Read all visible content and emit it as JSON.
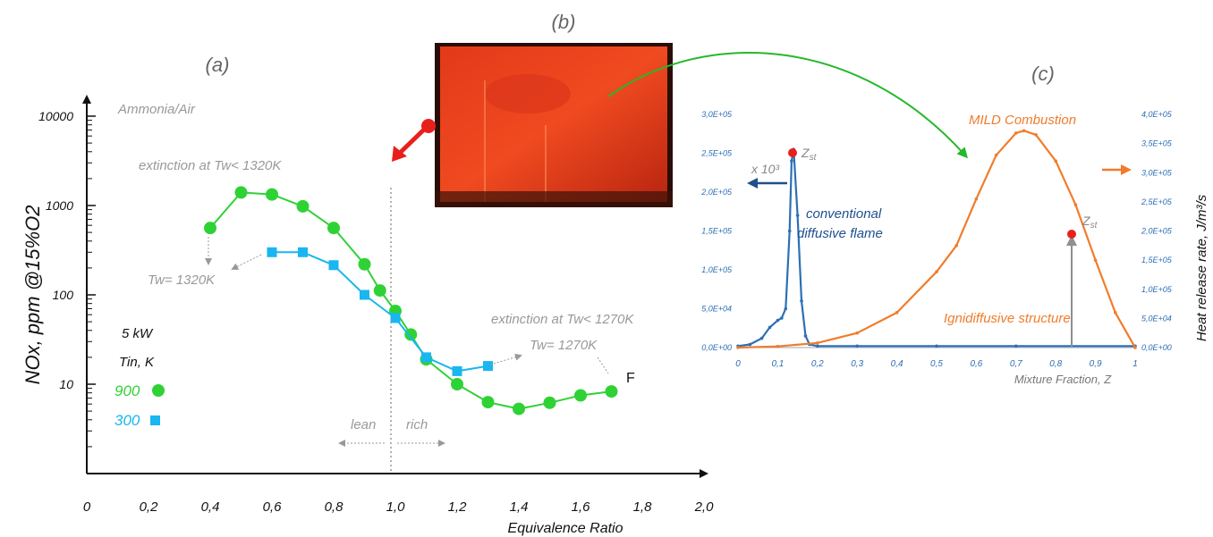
{
  "panels": {
    "a": "(a)",
    "b": "(b)",
    "c": "(c)"
  },
  "chart_data": [
    {
      "type": "line",
      "panel": "(a)",
      "xlabel": "Equivalence Ratio",
      "ylabel": "NOx, ppm @15%O2",
      "y_scale": "log",
      "xlim": [
        0,
        2.0
      ],
      "ylim": [
        1,
        10000
      ],
      "x_ticks": [
        "0",
        "0,2",
        "0,4",
        "0,6",
        "0,8",
        "1,0",
        "1,2",
        "1,4",
        "1,6",
        "1,8",
        "2,0"
      ],
      "y_ticks": [
        "10000",
        "1000",
        "100",
        "10"
      ],
      "legend_title": "5 kW",
      "legend_subtitle": "Tin, K",
      "series": [
        {
          "name": "900",
          "color": "#2fd235",
          "marker": "circle",
          "x": [
            0.4,
            0.5,
            0.6,
            0.7,
            0.8,
            0.9,
            0.95,
            1.0,
            1.05,
            1.1,
            1.2,
            1.3,
            1.4,
            1.5,
            1.6,
            1.7
          ],
          "y": [
            560,
            1400,
            1330,
            980,
            560,
            220,
            112,
            66,
            36,
            19,
            10,
            6.3,
            5.3,
            6.2,
            7.5,
            8.3
          ]
        },
        {
          "name": "300",
          "color": "#19b6f0",
          "marker": "square",
          "x": [
            0.6,
            0.7,
            0.8,
            0.9,
            1.0,
            1.1,
            1.2,
            1.3
          ],
          "y": [
            300,
            300,
            215,
            100,
            55,
            20,
            14,
            16
          ]
        }
      ],
      "annotations": {
        "fuel": "Ammonia/Air",
        "extinction_lean": "extinction at Tw< 1320K",
        "tw_lean": "Tw= 1320K",
        "extinction_rich": "extinction at Tw< 1270K",
        "tw_rich": "Tw= 1270K",
        "lean": "lean",
        "rich": "rich",
        "f_label": "F"
      }
    },
    {
      "type": "line",
      "panel": "(c)",
      "xlabel": "Mixture Fraction, Z",
      "ylabel_right": "Heat release rate, J/m³/s",
      "xlim": [
        0,
        1
      ],
      "ylim_left": [
        0,
        300000
      ],
      "ylim_right": [
        0,
        400000
      ],
      "x_ticks": [
        "0",
        "0,1",
        "0,2",
        "0,3",
        "0,4",
        "0,5",
        "0,6",
        "0,7",
        "0,8",
        "0,9",
        "1"
      ],
      "y_left_ticks": [
        "0,0E+00",
        "5,0E+04",
        "1,0E+05",
        "1,5E+05",
        "2,0E+05",
        "2,5E+05",
        "3,0E+05"
      ],
      "y_right_ticks": [
        "0,0E+00",
        "5,0E+04",
        "1,0E+05",
        "1,5E+05",
        "2,0E+05",
        "2,5E+05",
        "3,0E+05",
        "3,5E+05",
        "4,0E+05"
      ],
      "series": [
        {
          "name": "conventional diffusive flame",
          "color": "#2c6fb5",
          "axis": "left",
          "x": [
            0,
            0.03,
            0.06,
            0.08,
            0.1,
            0.11,
            0.12,
            0.13,
            0.135,
            0.14,
            0.15,
            0.16,
            0.17,
            0.18,
            0.2,
            0.3,
            0.5,
            0.7,
            1.0
          ],
          "y": [
            2000,
            4000,
            12000,
            26000,
            35000,
            38000,
            50000,
            150000,
            240000,
            255000,
            170000,
            60000,
            15000,
            4000,
            2000,
            2000,
            2000,
            2000,
            2000
          ]
        },
        {
          "name": "MILD Combustion",
          "color": "#f07c2c",
          "axis": "right",
          "x": [
            0,
            0.1,
            0.2,
            0.3,
            0.4,
            0.5,
            0.55,
            0.6,
            0.65,
            0.7,
            0.72,
            0.75,
            0.8,
            0.85,
            0.9,
            0.95,
            1.0
          ],
          "y": [
            0,
            2000,
            8000,
            25000,
            60000,
            130000,
            175000,
            255000,
            330000,
            368000,
            372000,
            365000,
            320000,
            245000,
            150000,
            60000,
            0
          ]
        }
      ],
      "annotations": {
        "mild": "MILD Combustion",
        "x_scale": "x 10³",
        "zst_1": "Zst",
        "zst_2": "Zst",
        "conventional_1": "conventional",
        "conventional_2": "diffusive flame",
        "ignidiffusive": "Ignidiffusive structure"
      }
    }
  ]
}
